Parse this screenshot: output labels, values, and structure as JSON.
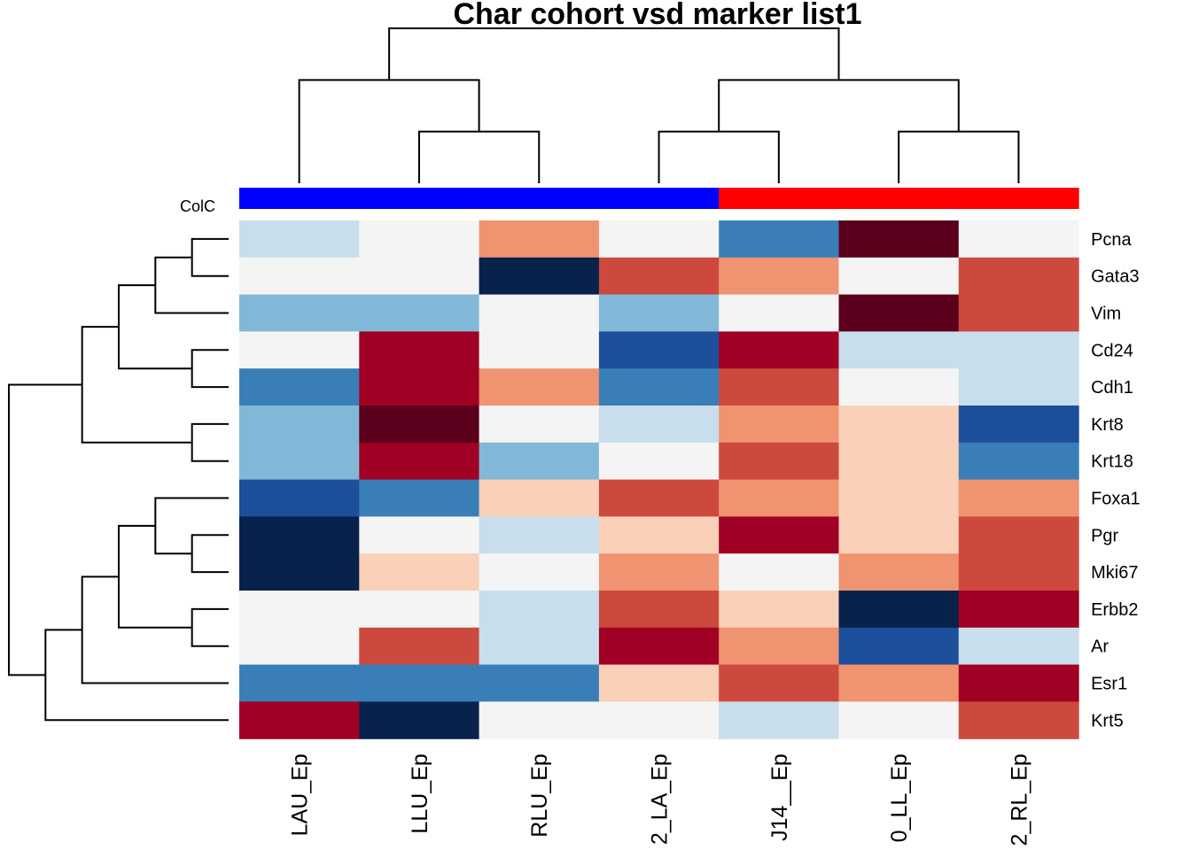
{
  "chart_data": {
    "type": "heatmap",
    "title": "Char cohort vsd marker list1",
    "rows": [
      "Pcna",
      "Gata3",
      "Vim",
      "Cd24",
      "Cdh1",
      "Krt8",
      "Krt18",
      "Foxa1",
      "Pgr",
      "Mki67",
      "Erbb2",
      "Ar",
      "Esr1",
      "Krt5"
    ],
    "columns": [
      "LAU_Ep",
      "LLU_Ep",
      "RLU_Ep",
      "2_LA_Ep",
      "J14__Ep",
      "0_LL_Ep",
      "2_RL_Ep"
    ],
    "column_annotation": {
      "label": "ColC",
      "colors": [
        "#0000FF",
        "#0000FF",
        "#0000FF",
        "#0000FF",
        "#FF0000",
        "#FF0000",
        "#FF0000"
      ]
    },
    "color_scale": {
      "levels": [
        -4,
        -3,
        -2,
        -1,
        0,
        1,
        2,
        3,
        4
      ],
      "colors": [
        "#08224C",
        "#1D4F9A",
        "#3A7EB8",
        "#82B8D7",
        "#C8DEEC",
        "#F4F4F4",
        "#FAD0B8",
        "#EF9371",
        "#CC4A3D",
        "#A00024",
        "#5B001C"
      ],
      "ordered_colors": [
        "#08224C",
        "#1D4F9A",
        "#3A7EB8",
        "#82B8D7",
        "#C8DEEC",
        "#F4F4F4",
        "#FAD0B8",
        "#EF9371",
        "#CC4A3D",
        "#A00024",
        "#5B001C"
      ],
      "level_values": [
        -5,
        -4,
        -3,
        -2,
        -1,
        0,
        1,
        2,
        3,
        4,
        5
      ]
    },
    "values": [
      [
        -1,
        0,
        2,
        0,
        -3,
        5,
        0
      ],
      [
        0,
        0,
        -5,
        3,
        2,
        0,
        3
      ],
      [
        -2,
        -2,
        0,
        -2,
        0,
        5,
        3
      ],
      [
        0,
        4,
        0,
        -4,
        4,
        -1,
        -1
      ],
      [
        -3,
        4,
        2,
        -3,
        3,
        0,
        -1
      ],
      [
        -2,
        5,
        0,
        -1,
        2,
        1,
        -4
      ],
      [
        -2,
        4,
        -2,
        0,
        3,
        1,
        -3
      ],
      [
        -4,
        -3,
        1,
        3,
        2,
        1,
        2
      ],
      [
        -5,
        0,
        -1,
        1,
        4,
        1,
        3
      ],
      [
        -5,
        1,
        0,
        2,
        0,
        2,
        3
      ],
      [
        0,
        0,
        -1,
        3,
        1,
        -5,
        4
      ],
      [
        0,
        3,
        -1,
        4,
        2,
        -4,
        -1
      ],
      [
        -3,
        -3,
        -3,
        1,
        3,
        2,
        4
      ],
      [
        4,
        -5,
        0,
        0,
        -1,
        0,
        3
      ]
    ],
    "row_dendrogram": [
      [
        0,
        1
      ],
      [
        14,
        2
      ],
      [
        3,
        4
      ],
      [
        15,
        16
      ],
      [
        5,
        6
      ],
      [
        17,
        18
      ],
      [
        10,
        11
      ],
      [
        8,
        9
      ],
      [
        7,
        21
      ],
      [
        20,
        22
      ],
      [
        12,
        23
      ],
      [
        13,
        24
      ],
      [
        19,
        25
      ]
    ],
    "column_dendrogram": [
      [
        1,
        2
      ],
      [
        3,
        4
      ],
      [
        5,
        6
      ],
      [
        0,
        7
      ],
      [
        8,
        9
      ],
      [
        10,
        11
      ]
    ],
    "legend": "none",
    "grid": false
  }
}
